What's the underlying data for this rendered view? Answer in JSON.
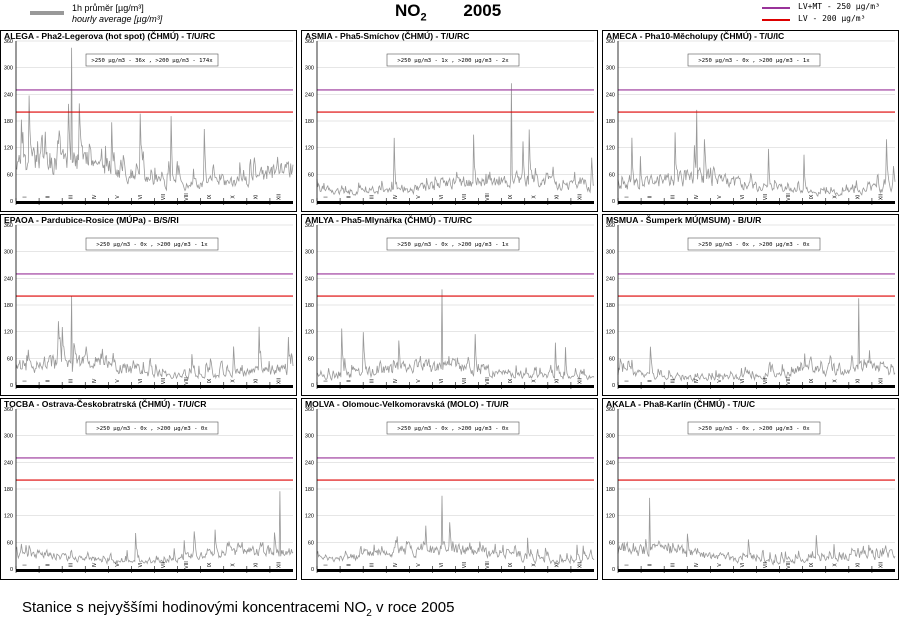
{
  "header": {
    "legend_cz": "1h průměr [µg/m³]",
    "legend_en": "hourly average [µg/m³]",
    "title_pollutant": "NO",
    "title_sub": "2",
    "title_year": "2005",
    "limit_1_label": "LV+MT - 250 µg/m³",
    "limit_2_label": "LV  - 200 µg/m³"
  },
  "caption": {
    "text": "Stanice s nejvyššími hodinovými koncentracemi NO",
    "sub": "2",
    "suffix": " v roce 2005"
  },
  "colors": {
    "series": "#999999",
    "limit_1": "#993399",
    "limit_2": "#dd0000",
    "axis": "#000000",
    "grid": "#cccccc"
  },
  "chart_data": [
    {
      "type": "line",
      "title": "ALEGA - Pha2-Legerova (hot spot) (ČHMÚ) - T/U/RC",
      "annotation": ">250 µg/m3 - 36x , >200 µg/m3 - 174x",
      "ylim": [
        0,
        360
      ],
      "yticks": [
        0,
        60,
        120,
        180,
        240,
        300,
        360
      ],
      "months": [
        "I",
        "II",
        "III",
        "IV",
        "V",
        "VI",
        "VII",
        "VIII",
        "IX",
        "X",
        "XI",
        "XII"
      ],
      "limits": [
        250,
        200
      ],
      "profile": {
        "base": 95,
        "amp": 70,
        "max": 345,
        "peak_month": 2
      }
    },
    {
      "type": "line",
      "title": "ASMIA - Pha5-Smíchov (ČHMÚ) - T/U/RC",
      "annotation": ">250 µg/m3 - 1x , >200 µg/m3 - 2x",
      "ylim": [
        0,
        360
      ],
      "yticks": [
        0,
        60,
        120,
        180,
        240,
        300,
        360
      ],
      "months": [
        "I",
        "II",
        "III",
        "IV",
        "V",
        "VI",
        "VII",
        "VIII",
        "IX",
        "X",
        "XI",
        "XII"
      ],
      "limits": [
        250,
        200
      ],
      "profile": {
        "base": 45,
        "amp": 40,
        "max": 265,
        "peak_month": 8
      }
    },
    {
      "type": "line",
      "title": "AMECA - Pha10-Měcholupy (ČHMÚ) - T/U/IC",
      "annotation": ">250 µg/m3 - 0x , >200 µg/m3 - 1x",
      "ylim": [
        0,
        360
      ],
      "yticks": [
        0,
        60,
        120,
        180,
        240,
        300,
        360
      ],
      "months": [
        "I",
        "II",
        "III",
        "IV",
        "V",
        "VI",
        "VII",
        "VIII",
        "IX",
        "X",
        "XI",
        "XII"
      ],
      "limits": [
        250,
        200
      ],
      "profile": {
        "base": 45,
        "amp": 40,
        "max": 205,
        "peak_month": 3
      }
    },
    {
      "type": "line",
      "title": "EPAOA - Pardubice-Rosice (MÚPa) - B/S/RI",
      "annotation": ">250 µg/m3 - 0x , >200 µg/m3 - 1x",
      "ylim": [
        0,
        360
      ],
      "yticks": [
        0,
        60,
        120,
        180,
        240,
        300,
        360
      ],
      "months": [
        "I",
        "II",
        "III",
        "IV",
        "V",
        "VI",
        "VII",
        "VIII",
        "IX",
        "X",
        "XI",
        "XII"
      ],
      "limits": [
        250,
        200
      ],
      "profile": {
        "base": 40,
        "amp": 45,
        "max": 200,
        "peak_month": 2
      }
    },
    {
      "type": "line",
      "title": "AMLYA - Pha5-Mlynářka (ČHMÚ) - T/U/RC",
      "annotation": ">250 µg/m3 - 0x , >200 µg/m3 - 1x",
      "ylim": [
        0,
        360
      ],
      "yticks": [
        0,
        60,
        120,
        180,
        240,
        300,
        360
      ],
      "months": [
        "I",
        "II",
        "III",
        "IV",
        "V",
        "VI",
        "VII",
        "VIII",
        "IX",
        "X",
        "XI",
        "XII"
      ],
      "limits": [
        250,
        200
      ],
      "profile": {
        "base": 35,
        "amp": 35,
        "max": 215,
        "peak_month": 5
      }
    },
    {
      "type": "line",
      "title": "MSMUA - Šumperk MÚ(MSUM) - B/U/R",
      "annotation": ">250 µg/m3 - 0x , >200 µg/m3 - 0x",
      "ylim": [
        0,
        360
      ],
      "yticks": [
        0,
        60,
        120,
        180,
        240,
        300,
        360
      ],
      "months": [
        "I",
        "II",
        "III",
        "IV",
        "V",
        "VI",
        "VII",
        "VIII",
        "IX",
        "X",
        "XI",
        "XII"
      ],
      "limits": [
        250,
        200
      ],
      "profile": {
        "base": 30,
        "amp": 35,
        "max": 195,
        "peak_month": 10
      }
    },
    {
      "type": "line",
      "title": "TOCBA - Ostrava-Českobratrská (ČHMÚ) - T/U/CR",
      "annotation": ">250 µg/m3 - 0x , >200 µg/m3 - 0x",
      "ylim": [
        0,
        360
      ],
      "yticks": [
        0,
        60,
        120,
        180,
        240,
        300,
        360
      ],
      "months": [
        "I",
        "II",
        "III",
        "IV",
        "V",
        "VI",
        "VII",
        "VIII",
        "IX",
        "X",
        "XI",
        "XII"
      ],
      "limits": [
        250,
        200
      ],
      "profile": {
        "base": 40,
        "amp": 30,
        "max": 175,
        "peak_month": 11
      }
    },
    {
      "type": "line",
      "title": "MOLVA - Olomouc-Velkomoravská (MOLO) - T/U/R",
      "annotation": ">250 µg/m3 - 0x , >200 µg/m3 - 0x",
      "ylim": [
        0,
        360
      ],
      "yticks": [
        0,
        60,
        120,
        180,
        240,
        300,
        360
      ],
      "months": [
        "I",
        "II",
        "III",
        "IV",
        "V",
        "VI",
        "VII",
        "VIII",
        "IX",
        "X",
        "XI",
        "XII"
      ],
      "limits": [
        250,
        200
      ],
      "profile": {
        "base": 45,
        "amp": 35,
        "max": 165,
        "peak_month": 5
      }
    },
    {
      "type": "line",
      "title": "AKALA - Pha8-Karlín (ČHMÚ) - T/U/C",
      "annotation": ">250 µg/m3 - 0x , >200 µg/m3 - 0x",
      "ylim": [
        0,
        360
      ],
      "yticks": [
        0,
        60,
        120,
        180,
        240,
        300,
        360
      ],
      "months": [
        "I",
        "II",
        "III",
        "IV",
        "V",
        "VI",
        "VII",
        "VIII",
        "IX",
        "X",
        "XI",
        "XII"
      ],
      "limits": [
        250,
        200
      ],
      "profile": {
        "base": 40,
        "amp": 35,
        "max": 160,
        "peak_month": 1
      }
    }
  ]
}
